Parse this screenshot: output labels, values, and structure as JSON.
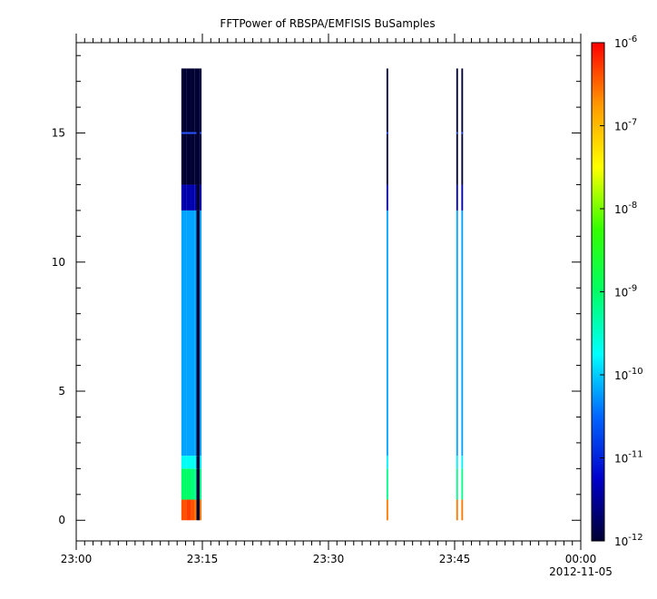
{
  "chart_data": {
    "type": "heatmap",
    "title": "FFTPower of RBSPA/EMFISIS  BuSamples",
    "xlabel": "",
    "ylabel": "",
    "x_ticks": [
      "23:00",
      "23:15",
      "23:30",
      "23:45",
      "00:00"
    ],
    "x_date_label": "2012-11-05",
    "x_range": [
      "23:00",
      "00:00"
    ],
    "x_minor_tick_minutes": 1,
    "ylim": [
      -0.8,
      18.5
    ],
    "y_ticks": [
      0,
      5,
      10,
      15
    ],
    "grid": false,
    "colorbar": {
      "scale": "log",
      "colormap": "rainbow",
      "range": [
        1e-12,
        1e-06
      ],
      "tick_base": "10",
      "tick_exponents": [
        "-12",
        "-11",
        "-10",
        "-9",
        "-8",
        "-7",
        "-6"
      ]
    },
    "colormap_colors": [
      "#000033",
      "#0000cc",
      "#0066ff",
      "#00ffff",
      "#00ff66",
      "#33ff00",
      "#ffff00",
      "#ff9900",
      "#ff0000"
    ],
    "y_bins": [
      0,
      0.8,
      2,
      2.5,
      12,
      13,
      17.5
    ],
    "time_columns": [
      {
        "start": "23:12:30",
        "end": "23:13:06",
        "log_power": [
          -6.4,
          -9.0,
          -9.7,
          -10.2,
          -11.4,
          -12.0
        ]
      },
      {
        "start": "23:13:06",
        "end": "23:13:36",
        "log_power": [
          -6.3,
          -9.0,
          -9.7,
          -10.2,
          -11.4,
          -12.0
        ]
      },
      {
        "start": "23:13:36",
        "end": "23:14:06",
        "log_power": [
          -6.4,
          -9.1,
          -9.7,
          -10.2,
          -11.4,
          -12.0
        ]
      },
      {
        "start": "23:14:06",
        "end": "23:14:18",
        "log_power": [
          -6.6,
          -9.2,
          -9.8,
          -10.2,
          -11.4,
          -12.0
        ]
      },
      {
        "start": "23:14:18",
        "end": "23:14:42",
        "log_power": [
          -12.0,
          -12.0,
          -12.0,
          -12.0,
          -12.0,
          -12.0
        ]
      },
      {
        "start": "23:14:42",
        "end": "23:14:54",
        "log_power": [
          -6.6,
          -9.2,
          -9.8,
          -10.2,
          -11.4,
          -12.0
        ]
      },
      {
        "start": "23:36:54",
        "end": "23:37:06",
        "log_power": [
          -6.6,
          -9.2,
          -9.8,
          -10.2,
          -11.4,
          -12.0
        ]
      },
      {
        "start": "23:45:12",
        "end": "23:45:24",
        "log_power": [
          -6.6,
          -9.2,
          -9.8,
          -10.2,
          -11.4,
          -12.0
        ]
      },
      {
        "start": "23:45:48",
        "end": "23:46:00",
        "log_power": [
          -6.6,
          -9.2,
          -9.8,
          -10.2,
          -11.4,
          -12.0
        ]
      }
    ],
    "hot_line_frequency": 15
  }
}
